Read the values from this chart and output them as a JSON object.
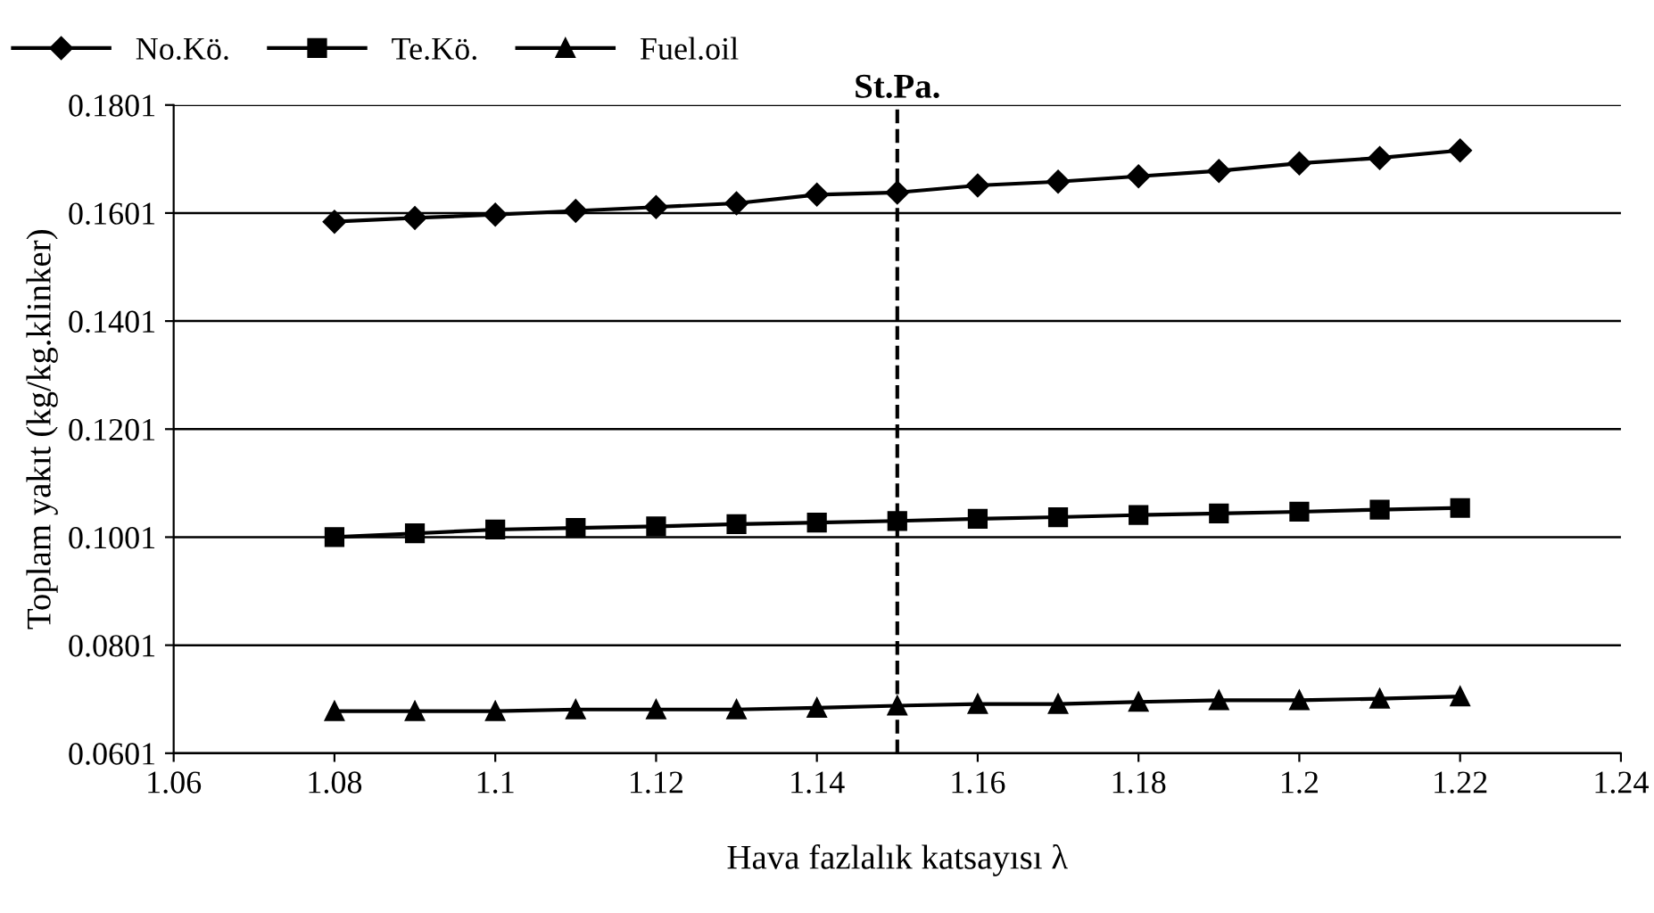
{
  "chart_data": {
    "type": "line",
    "xlabel": "Hava fazlalık katsayısı λ",
    "ylabel": "Toplam yakıt (kg/kg.klinker)",
    "x": [
      1.08,
      1.09,
      1.1,
      1.11,
      1.12,
      1.13,
      1.14,
      1.15,
      1.16,
      1.17,
      1.18,
      1.19,
      1.2,
      1.21,
      1.22
    ],
    "series": [
      {
        "name": "No.Kö.",
        "color": "#000000",
        "marker": "diamond",
        "values": [
          0.1585,
          0.1592,
          0.1598,
          0.1605,
          0.1612,
          0.1619,
          0.1635,
          0.1639,
          0.1652,
          0.1659,
          0.1669,
          0.1679,
          0.1693,
          0.1703,
          0.1717
        ]
      },
      {
        "name": "Te.Kö.",
        "color": "#000000",
        "marker": "square",
        "values": [
          0.1001,
          0.1008,
          0.1015,
          0.1018,
          0.1021,
          0.1025,
          0.1028,
          0.1031,
          0.1035,
          0.1038,
          0.1042,
          0.1045,
          0.1048,
          0.1052,
          0.1055
        ]
      },
      {
        "name": "Fuel.oil",
        "color": "#000000",
        "marker": "triangle",
        "values": [
          0.0679,
          0.0679,
          0.0679,
          0.0682,
          0.0682,
          0.0682,
          0.0685,
          0.0689,
          0.0692,
          0.0692,
          0.0696,
          0.0699,
          0.0699,
          0.0702,
          0.0706
        ]
      }
    ],
    "xlim": [
      1.06,
      1.24
    ],
    "xticks": [
      1.06,
      1.08,
      1.1,
      1.12,
      1.14,
      1.16,
      1.18,
      1.2,
      1.22,
      1.24
    ],
    "ylim": [
      0.0601,
      0.1801
    ],
    "yticks": [
      0.0601,
      0.0801,
      0.1001,
      0.1201,
      0.1401,
      0.1601,
      0.1801
    ],
    "ref_lines": [
      {
        "axis": "x",
        "value": 1.15,
        "label": "St.Pa.",
        "color": "#000000",
        "line_style": "dashed"
      }
    ],
    "grid": "y",
    "legend": "top left"
  }
}
